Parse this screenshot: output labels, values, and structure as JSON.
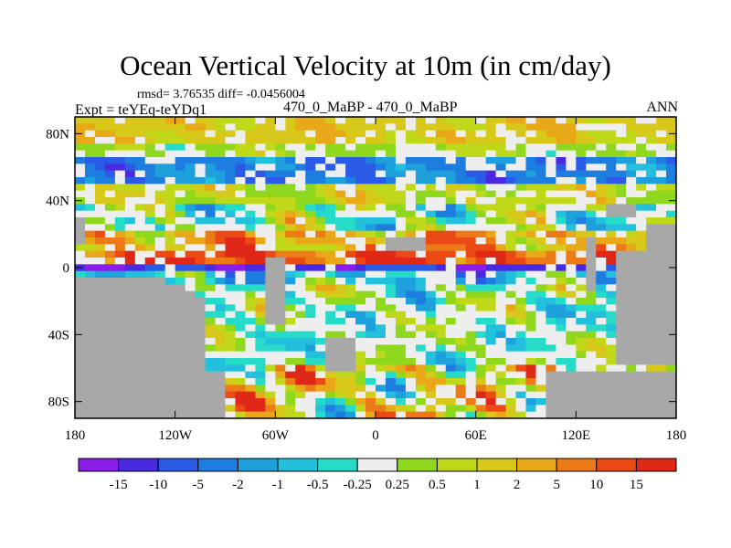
{
  "chart_data": {
    "type": "heatmap",
    "title": "Ocean Vertical Velocity at 10m (in cm/day)",
    "stats_line": "rmsd= 3.76535 diff= -0.0456004",
    "experiment_label": "Expt = teYEq-teYDq1",
    "cases_label": "470_0_MaBP - 470_0_MaBP",
    "season_label": "ANN",
    "x_axis": {
      "range": [
        -180,
        180
      ],
      "ticks": [
        -180,
        -120,
        -60,
        0,
        60,
        120,
        180
      ],
      "tick_labels": [
        "180",
        "120W",
        "60W",
        "0",
        "60E",
        "120E",
        "180"
      ]
    },
    "y_axis": {
      "range": [
        -90,
        90
      ],
      "ticks": [
        80,
        40,
        0,
        -40,
        -80
      ],
      "tick_labels": [
        "80N",
        "40N",
        "0",
        "40S",
        "80S"
      ]
    },
    "colorbar": {
      "colors": [
        "#8a1ee8",
        "#4a2ae0",
        "#2a5ae6",
        "#1e7ee0",
        "#1ea0dc",
        "#22c0dc",
        "#26dcc8",
        "#eeeeee",
        "#90d81e",
        "#c0d81a",
        "#d8c81a",
        "#e8a818",
        "#ec7a16",
        "#ec4a14",
        "#e02818"
      ],
      "labels": [
        "-15",
        "-10",
        "-5",
        "-2",
        "-1",
        "-0.5",
        "-0.25",
        "0.25",
        "0.5",
        "1",
        "2",
        "5",
        "10",
        "15"
      ]
    },
    "land_color": "#a8a8a8"
  }
}
